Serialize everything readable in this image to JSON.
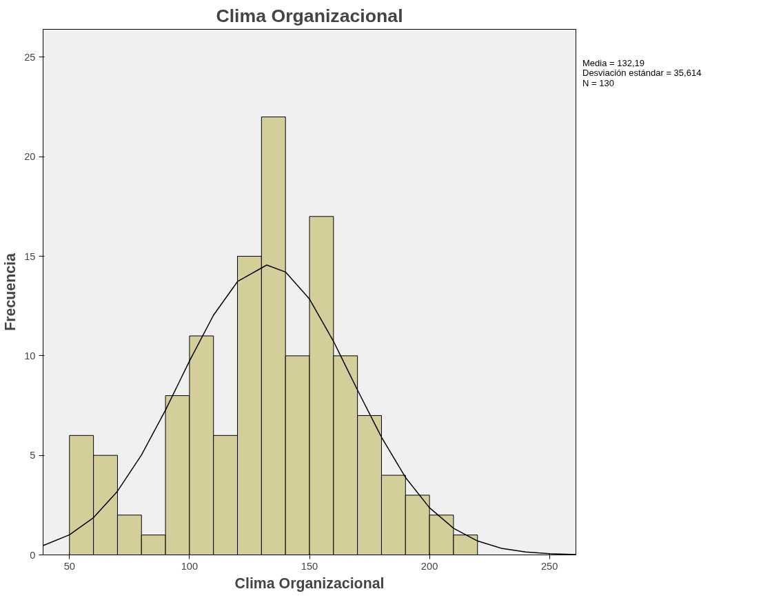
{
  "chart_data": {
    "type": "histogram",
    "title": "Clima Organizacional",
    "xlabel": "Clima Organizacional",
    "ylabel": "Frecuencia",
    "bins": [
      50,
      60,
      70,
      80,
      90,
      100,
      110,
      120,
      130,
      140,
      150,
      160,
      170,
      180,
      190,
      200,
      210,
      220
    ],
    "values": [
      6,
      5,
      2,
      1,
      8,
      11,
      6,
      15,
      22,
      10,
      17,
      10,
      7,
      4,
      3,
      2,
      1
    ],
    "color": "#d4cf9a",
    "series": [
      {
        "type": "line",
        "color": "#000000",
        "x": [
          39,
          50,
          60,
          70,
          80,
          90,
          100,
          110,
          120,
          132.19,
          140,
          150,
          160,
          170,
          180,
          190,
          200,
          210,
          220,
          230,
          240,
          250,
          261
        ],
        "values": [
          0.47,
          1.01,
          1.87,
          3.2,
          5.02,
          7.27,
          9.74,
          12.04,
          13.73,
          14.56,
          14.21,
          12.85,
          10.73,
          8.28,
          5.91,
          3.89,
          2.37,
          1.34,
          0.7,
          0.33,
          0.15,
          0.06,
          0.02
        ]
      }
    ],
    "xlim": [
      39,
      261
    ],
    "ylim": [
      0,
      26.4
    ],
    "xticks": [
      50,
      100,
      150,
      200,
      250
    ],
    "yticks": [
      0,
      5,
      10,
      15,
      20,
      25
    ],
    "grid": false,
    "annotations": [
      "Media = 132,19",
      "Desviación estándar = 35,614",
      "N = 130"
    ]
  }
}
